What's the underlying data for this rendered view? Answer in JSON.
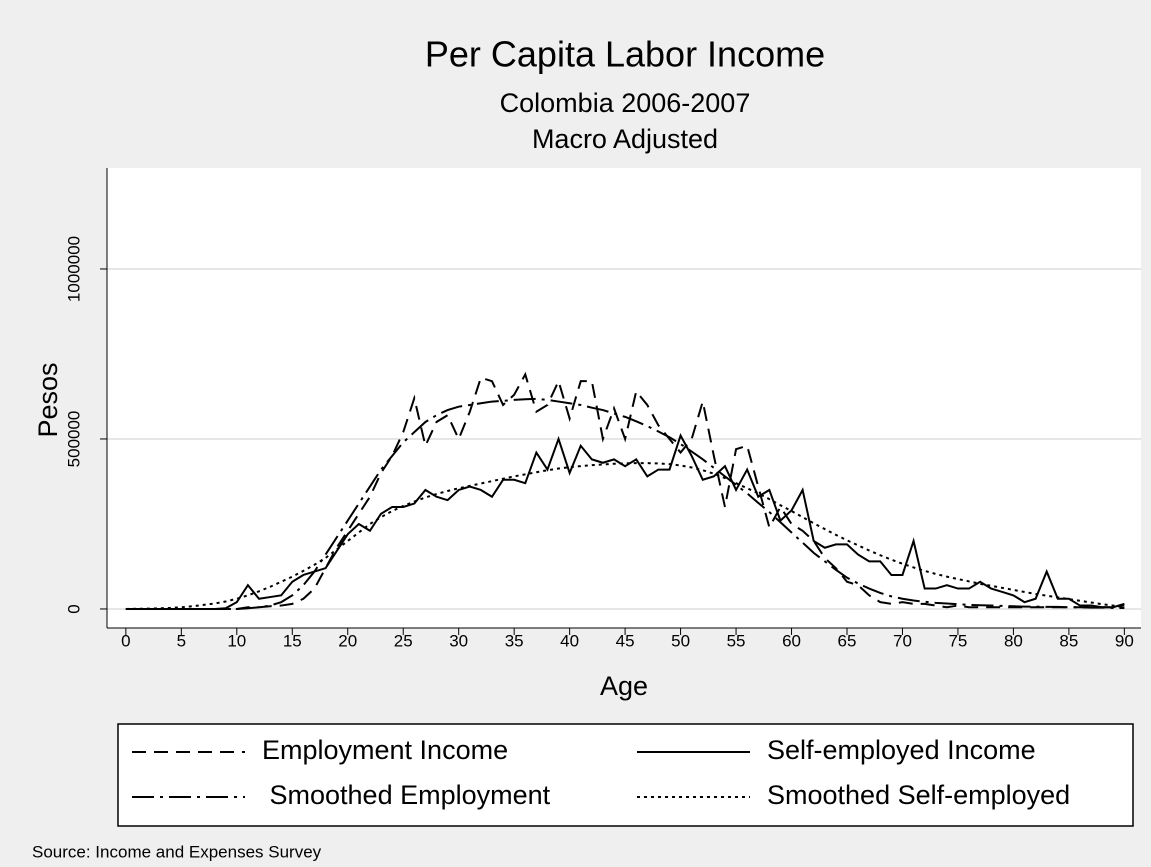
{
  "chart_data": {
    "type": "line",
    "title": "Per Capita Labor Income",
    "subtitle": [
      "Colombia 2006-2007",
      "Macro Adjusted"
    ],
    "xlabel": "Age",
    "ylabel": "Pesos",
    "note": "Source: Income and Expenses Survey",
    "x": [
      0,
      1,
      2,
      3,
      4,
      5,
      6,
      7,
      8,
      9,
      10,
      11,
      12,
      13,
      14,
      15,
      16,
      17,
      18,
      19,
      20,
      21,
      22,
      23,
      24,
      25,
      26,
      27,
      28,
      29,
      30,
      31,
      32,
      33,
      34,
      35,
      36,
      37,
      38,
      39,
      40,
      41,
      42,
      43,
      44,
      45,
      46,
      47,
      48,
      49,
      50,
      51,
      52,
      53,
      54,
      55,
      56,
      57,
      58,
      59,
      60,
      61,
      62,
      63,
      64,
      65,
      66,
      67,
      68,
      69,
      70,
      71,
      72,
      73,
      74,
      75,
      76,
      77,
      78,
      79,
      80,
      81,
      82,
      83,
      84,
      85,
      86,
      87,
      88,
      89,
      90
    ],
    "series": [
      {
        "name": "Employment Income",
        "color": "#000000",
        "dash": "14,8",
        "values": [
          0,
          0,
          0,
          0,
          0,
          0,
          0,
          0,
          0,
          0,
          0,
          5000,
          5000,
          8000,
          10000,
          15000,
          30000,
          60000,
          120000,
          180000,
          230000,
          280000,
          330000,
          400000,
          450000,
          520000,
          620000,
          480000,
          550000,
          570000,
          500000,
          580000,
          680000,
          670000,
          600000,
          630000,
          690000,
          580000,
          600000,
          670000,
          560000,
          670000,
          670000,
          500000,
          590000,
          500000,
          640000,
          600000,
          540000,
          500000,
          460000,
          500000,
          610000,
          450000,
          300000,
          470000,
          480000,
          360000,
          240000,
          300000,
          250000,
          230000,
          200000,
          150000,
          120000,
          80000,
          70000,
          40000,
          20000,
          15000,
          20000,
          15000,
          15000,
          10000,
          5000,
          10000,
          5000,
          5000,
          5000,
          5000,
          5000,
          5000,
          5000,
          5000,
          5000,
          5000,
          5000,
          5000,
          5000,
          5000,
          10000
        ]
      },
      {
        "name": "Self-employed Income",
        "color": "#000000",
        "dash": "none",
        "values": [
          0,
          0,
          0,
          0,
          0,
          0,
          0,
          0,
          0,
          2000,
          20000,
          70000,
          30000,
          35000,
          40000,
          80000,
          100000,
          110000,
          120000,
          170000,
          220000,
          250000,
          230000,
          280000,
          300000,
          300000,
          310000,
          350000,
          330000,
          320000,
          350000,
          360000,
          350000,
          330000,
          380000,
          380000,
          370000,
          460000,
          410000,
          500000,
          400000,
          480000,
          440000,
          430000,
          440000,
          420000,
          440000,
          390000,
          410000,
          410000,
          510000,
          450000,
          380000,
          390000,
          420000,
          350000,
          410000,
          330000,
          350000,
          260000,
          290000,
          350000,
          200000,
          180000,
          190000,
          190000,
          160000,
          140000,
          140000,
          100000,
          100000,
          200000,
          60000,
          60000,
          70000,
          60000,
          60000,
          80000,
          60000,
          50000,
          40000,
          20000,
          30000,
          110000,
          30000,
          30000,
          10000,
          10000,
          5000,
          5000,
          15000
        ]
      },
      {
        "name": " Smoothed Employment",
        "color": "#000000",
        "dash": "22,6,3,6",
        "values": [
          0,
          0,
          0,
          0,
          0,
          0,
          0,
          0,
          0,
          0,
          0,
          2000,
          5000,
          10000,
          20000,
          40000,
          70000,
          110000,
          160000,
          210000,
          260000,
          310000,
          360000,
          410000,
          450000,
          490000,
          520000,
          550000,
          570000,
          585000,
          595000,
          600000,
          605000,
          610000,
          612000,
          615000,
          617000,
          618000,
          615000,
          610000,
          605000,
          600000,
          592000,
          585000,
          575000,
          565000,
          552000,
          538000,
          522000,
          505000,
          485000,
          463000,
          440000,
          415000,
          390000,
          365000,
          340000,
          312000,
          285000,
          255000,
          225000,
          195000,
          165000,
          140000,
          115000,
          92000,
          75000,
          60000,
          47000,
          37000,
          30000,
          25000,
          21000,
          18000,
          16000,
          14000,
          12000,
          11000,
          10000,
          9000,
          8000,
          7000,
          7000,
          6000,
          6000,
          5000,
          5000,
          4000,
          4000,
          3000,
          3000
        ]
      },
      {
        "name": "Smoothed Self-employed",
        "color": "#000000",
        "dash": "3,4",
        "values": [
          0,
          500,
          1000,
          2000,
          3000,
          5000,
          8000,
          12000,
          16000,
          22000,
          30000,
          40000,
          52000,
          65000,
          80000,
          95000,
          112000,
          130000,
          150000,
          175000,
          200000,
          225000,
          250000,
          270000,
          288000,
          303000,
          316000,
          328000,
          338000,
          347000,
          355000,
          362000,
          369000,
          376000,
          383000,
          390000,
          396000,
          402000,
          408000,
          413000,
          417000,
          420000,
          423000,
          425000,
          427000,
          428000,
          429000,
          429000,
          428000,
          426000,
          422000,
          416000,
          408000,
          398000,
          385000,
          370000,
          355000,
          340000,
          323000,
          305000,
          288000,
          270000,
          252000,
          235000,
          218000,
          202000,
          187000,
          172000,
          158000,
          145000,
          133000,
          122000,
          112000,
          103000,
          95000,
          88000,
          81000,
          74000,
          68000,
          62000,
          56000,
          50000,
          44000,
          39000,
          34000,
          29000,
          24000,
          19000,
          14000,
          10000,
          6000
        ]
      }
    ],
    "xlim": [
      -1.7,
      91.5
    ],
    "xticks": [
      0,
      5,
      10,
      15,
      20,
      25,
      30,
      35,
      40,
      45,
      50,
      55,
      60,
      65,
      70,
      75,
      80,
      85,
      90
    ],
    "ylim": [
      -56000,
      1297000
    ],
    "yticks": [
      0,
      500000,
      1000000
    ],
    "grid": true
  }
}
